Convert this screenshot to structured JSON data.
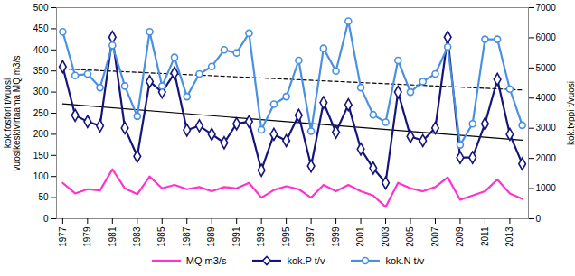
{
  "chart_data": {
    "type": "line",
    "y_label": [
      "kok.fosfori t/vuosi",
      "vuosikeskivirtaama MQ m3/s"
    ],
    "y2_label": "kok.typpi t/vuosi",
    "x": [
      1977,
      1978,
      1979,
      1980,
      1981,
      1982,
      1983,
      1984,
      1985,
      1986,
      1987,
      1988,
      1989,
      1990,
      1991,
      1992,
      1993,
      1994,
      1995,
      1996,
      1997,
      1998,
      1999,
      2000,
      2001,
      2002,
      2003,
      2004,
      2005,
      2006,
      2007,
      2008,
      2009,
      2010,
      2011,
      2012,
      2013,
      2014
    ],
    "xlim": [
      1976.5,
      2014.5
    ],
    "xticks": [
      1977,
      1979,
      1981,
      1983,
      1985,
      1987,
      1989,
      1991,
      1993,
      1995,
      1997,
      1999,
      2001,
      2003,
      2005,
      2007,
      2009,
      2011,
      2013
    ],
    "ylim": [
      0,
      500
    ],
    "yticks": [
      0,
      50,
      100,
      150,
      200,
      250,
      300,
      350,
      400,
      450,
      500
    ],
    "y2lim": [
      0,
      7000
    ],
    "y2ticks": [
      0,
      1000,
      2000,
      3000,
      4000,
      5000,
      6000,
      7000
    ],
    "legend": "bottom",
    "grid": false,
    "series": [
      {
        "name": "MQ m3/s",
        "color": "#ff33cc",
        "marker": "none",
        "axis": "y",
        "values": [
          85,
          60,
          70,
          67,
          117,
          72,
          58,
          100,
          72,
          80,
          70,
          75,
          65,
          75,
          72,
          85,
          50,
          68,
          77,
          70,
          50,
          80,
          65,
          80,
          65,
          55,
          28,
          85,
          72,
          65,
          75,
          98,
          45,
          55,
          65,
          93,
          60,
          47
        ]
      },
      {
        "name": "kok.P t/v",
        "color": "#14147a",
        "marker": "diamond",
        "axis": "y",
        "values": [
          360,
          245,
          230,
          220,
          430,
          215,
          148,
          325,
          300,
          345,
          210,
          220,
          200,
          180,
          225,
          230,
          115,
          200,
          185,
          245,
          125,
          275,
          205,
          270,
          165,
          120,
          85,
          300,
          195,
          185,
          215,
          430,
          145,
          145,
          225,
          330,
          200,
          130
        ]
      },
      {
        "name": "kok.N t/v",
        "color": "#4a90e2",
        "marker": "circle",
        "axis": "y2",
        "values": [
          6200,
          4750,
          4800,
          4350,
          5750,
          4400,
          3400,
          6200,
          4400,
          5350,
          4050,
          4800,
          5050,
          5600,
          5500,
          6150,
          2950,
          3800,
          4050,
          5250,
          2900,
          5650,
          4900,
          6550,
          4350,
          3450,
          3200,
          5250,
          4200,
          4550,
          4800,
          5700,
          2450,
          3150,
          5950,
          5950,
          4300,
          3100
        ]
      }
    ],
    "trend_lines": [
      {
        "x": [
          1977,
          2014
        ],
        "values": [
          272,
          186
        ],
        "axis": "y",
        "color": "#000000",
        "line_style": "solid"
      },
      {
        "x": [
          1977,
          2014
        ],
        "values": [
          4970,
          4270
        ],
        "axis": "y2",
        "color": "#000000",
        "line_style": "dashed"
      }
    ]
  }
}
